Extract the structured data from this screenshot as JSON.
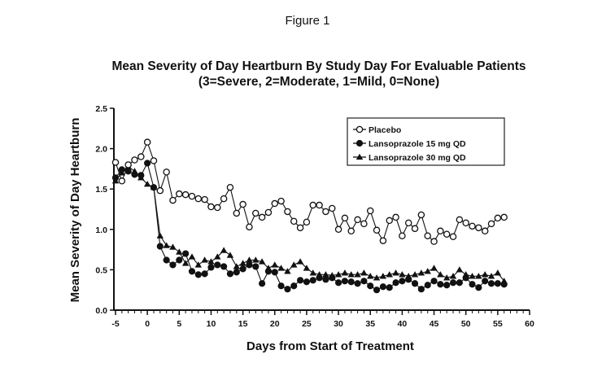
{
  "figure_label": "Figure 1",
  "chart_data": {
    "type": "line",
    "title": "Mean Severity of Day Heartburn By Study Day For Evaluable Patients",
    "subtitle": "(3=Severe, 2=Moderate, 1=Mild, 0=None)",
    "xlabel": "Days from Start of Treatment",
    "ylabel": "Mean Severity of Day Heartburn",
    "xlim": [
      -5,
      60
    ],
    "ylim": [
      0,
      2.5
    ],
    "x_ticks": [
      -5,
      0,
      5,
      10,
      15,
      20,
      25,
      30,
      35,
      40,
      45,
      50,
      55,
      60
    ],
    "x_tick_labels": [
      "-5",
      "0",
      "5",
      "10",
      "15",
      "20",
      "25",
      "30",
      "35",
      "40",
      "45",
      "50",
      "55",
      "60"
    ],
    "y_ticks": [
      0,
      0.5,
      1.0,
      1.5,
      2.0,
      2.5
    ],
    "y_tick_labels": [
      "0.0",
      "0.5",
      "1.0",
      "1.5",
      "2.0",
      "2.5"
    ],
    "grid": false,
    "legend_position": "top-right",
    "x": [
      -5,
      -4,
      -3,
      -2,
      -1,
      0,
      1,
      2,
      3,
      4,
      5,
      6,
      7,
      8,
      9,
      10,
      11,
      12,
      13,
      14,
      15,
      16,
      17,
      18,
      19,
      20,
      21,
      22,
      23,
      24,
      25,
      26,
      27,
      28,
      29,
      30,
      31,
      32,
      33,
      34,
      35,
      36,
      37,
      38,
      39,
      40,
      41,
      42,
      43,
      44,
      45,
      46,
      47,
      48,
      49,
      50,
      51,
      52,
      53,
      54,
      55,
      56
    ],
    "series": [
      {
        "name": "Placebo",
        "marker": "open-circle",
        "values": [
          1.83,
          1.6,
          1.8,
          1.86,
          1.9,
          2.08,
          1.85,
          1.48,
          1.71,
          1.36,
          1.44,
          1.43,
          1.41,
          1.38,
          1.37,
          1.28,
          1.27,
          1.38,
          1.52,
          1.2,
          1.31,
          1.03,
          1.2,
          1.15,
          1.21,
          1.32,
          1.35,
          1.22,
          1.1,
          1.02,
          1.09,
          1.3,
          1.3,
          1.22,
          1.26,
          1.0,
          1.14,
          0.98,
          1.12,
          1.07,
          1.23,
          0.99,
          0.86,
          1.11,
          1.15,
          0.92,
          1.08,
          1.01,
          1.18,
          0.92,
          0.85,
          0.98,
          0.94,
          0.91,
          1.12,
          1.08,
          1.04,
          1.02,
          0.98,
          1.07,
          1.14,
          1.15
        ]
      },
      {
        "name": "Lansoprazole 15 mg QD",
        "marker": "filled-circle",
        "values": [
          1.64,
          1.74,
          1.72,
          1.68,
          1.67,
          1.82,
          1.52,
          0.79,
          0.62,
          0.56,
          0.62,
          0.7,
          0.48,
          0.44,
          0.45,
          0.53,
          0.56,
          0.54,
          0.45,
          0.47,
          0.51,
          0.56,
          0.54,
          0.33,
          0.48,
          0.47,
          0.3,
          0.26,
          0.3,
          0.37,
          0.35,
          0.37,
          0.4,
          0.38,
          0.4,
          0.34,
          0.36,
          0.35,
          0.33,
          0.36,
          0.3,
          0.25,
          0.29,
          0.28,
          0.34,
          0.36,
          0.38,
          0.33,
          0.26,
          0.31,
          0.36,
          0.32,
          0.31,
          0.34,
          0.34,
          0.4,
          0.32,
          0.28,
          0.36,
          0.33,
          0.33,
          0.32
        ]
      },
      {
        "name": "Lansoprazole 30 mg QD",
        "marker": "filled-triangle",
        "values": [
          1.6,
          1.7,
          1.78,
          1.72,
          1.64,
          1.56,
          1.52,
          0.92,
          0.8,
          0.78,
          0.72,
          0.58,
          0.66,
          0.56,
          0.62,
          0.6,
          0.66,
          0.74,
          0.68,
          0.54,
          0.58,
          0.62,
          0.62,
          0.6,
          0.52,
          0.56,
          0.52,
          0.48,
          0.56,
          0.6,
          0.52,
          0.46,
          0.44,
          0.44,
          0.43,
          0.44,
          0.46,
          0.44,
          0.44,
          0.46,
          0.42,
          0.4,
          0.42,
          0.44,
          0.46,
          0.44,
          0.42,
          0.44,
          0.46,
          0.48,
          0.52,
          0.44,
          0.4,
          0.42,
          0.5,
          0.44,
          0.42,
          0.42,
          0.44,
          0.42,
          0.46,
          0.36
        ]
      }
    ]
  }
}
